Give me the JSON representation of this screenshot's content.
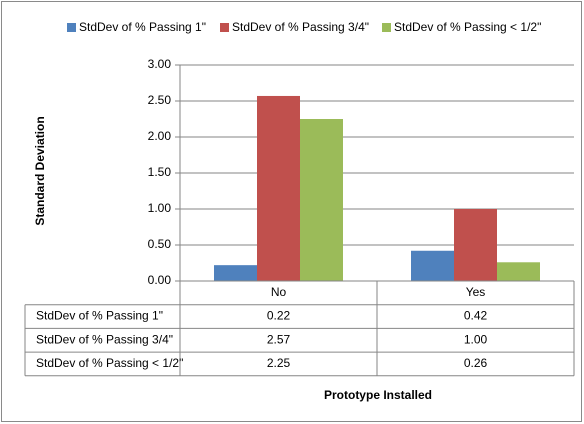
{
  "chart_data": {
    "type": "bar",
    "categories": [
      "No",
      "Yes"
    ],
    "series": [
      {
        "name": "StdDev of % Passing 1\"",
        "values": [
          0.22,
          0.42
        ],
        "color": "#4f81bd",
        "labels": [
          "0.22",
          "0.42"
        ]
      },
      {
        "name": "StdDev of % Passing 3/4\"",
        "values": [
          2.57,
          1.0
        ],
        "color": "#c0504d",
        "labels": [
          "2.57",
          "1.00"
        ]
      },
      {
        "name": "StdDev of % Passing < 1/2\"",
        "values": [
          2.25,
          0.26
        ],
        "color": "#9bbb59",
        "labels": [
          "2.25",
          "0.26"
        ]
      }
    ],
    "ylabel": "Standard Deviation",
    "xlabel": "Prototype Installed",
    "ylim": [
      0,
      3
    ],
    "yticks": [
      "0.00",
      "0.50",
      "1.00",
      "1.50",
      "2.00",
      "2.50",
      "3.00"
    ],
    "grid": true,
    "legend_position": "top",
    "data_table": true
  }
}
